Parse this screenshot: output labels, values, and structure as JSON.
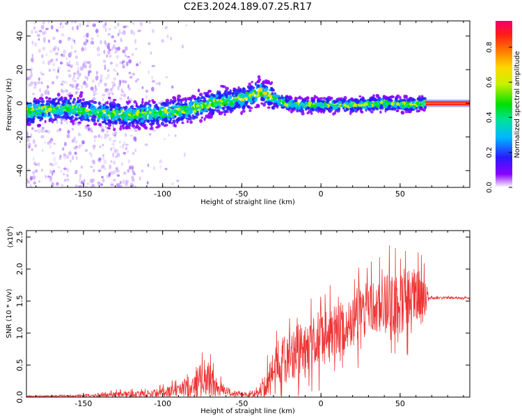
{
  "figure_title": "C2E3.2024.189.07.25.R17",
  "chart_data": [
    {
      "type": "heatmap",
      "title": "",
      "xlabel": "Height of straight line (km)",
      "ylabel": "Frequency (Hz)",
      "xlim": [
        -186,
        94
      ],
      "ylim": [
        -50,
        49
      ],
      "xticks": [
        -150,
        -100,
        -50,
        0,
        50
      ],
      "yticks": [
        -40,
        -20,
        0,
        20,
        40
      ],
      "colorbar": {
        "label": "Normalized spectral amplitude",
        "range": [
          0.0,
          0.95
        ],
        "ticks": [
          0.0,
          0.2,
          0.4,
          0.6,
          0.8
        ],
        "colormap": [
          "#8a00ff",
          "#2a1aff",
          "#00b8ff",
          "#00e0a0",
          "#00e000",
          "#c8f000",
          "#ffd800",
          "#ff7a00",
          "#ff1a1a",
          "#f0006a"
        ]
      },
      "ridge": {
        "x": [
          -186,
          -160,
          -140,
          -120,
          -100,
          -85,
          -70,
          -55,
          -45,
          -38,
          -30,
          -22,
          -15,
          0,
          20,
          40,
          55,
          65,
          94
        ],
        "y": [
          -5,
          -3,
          -6,
          -7,
          -6,
          -4,
          0,
          2,
          4,
          7,
          3,
          0,
          -1,
          -1,
          -1,
          0,
          -1,
          0,
          0
        ]
      },
      "high_amplitude_segment": {
        "x": [
          66,
          94
        ],
        "y": 0
      }
    },
    {
      "type": "line",
      "title": "",
      "xlabel": "Height of straight line (km)",
      "ylabel": "SNR (10 * v/v)",
      "y_multiplier": "(x10",
      "y_multiplier_exp": "4",
      "y_multiplier_close": ")",
      "xlim": [
        -186,
        94
      ],
      "ylim": [
        0.0,
        2.6
      ],
      "xticks": [
        -150,
        -100,
        -50,
        0,
        50
      ],
      "yticks": [
        0.0,
        0.5,
        1.0,
        1.5,
        2.0,
        2.5
      ],
      "series": [
        {
          "color": "#ee3333",
          "envelope": {
            "x": [
              -186,
              -150,
              -130,
              -110,
              -100,
              -90,
              -80,
              -75,
              -70,
              -62,
              -55,
              -45,
              -38,
              -32,
              -28,
              -20,
              -10,
              0,
              10,
              20,
              30,
              40,
              50,
              60,
              66,
              68,
              80,
              94
            ],
            "base": [
              0.01,
              0.02,
              0.04,
              0.05,
              0.08,
              0.12,
              0.2,
              0.3,
              0.25,
              0.12,
              0.05,
              0.04,
              0.08,
              0.3,
              0.5,
              0.65,
              0.8,
              0.9,
              1.05,
              1.2,
              1.35,
              1.45,
              1.5,
              1.55,
              1.5,
              1.55,
              1.55,
              1.55
            ],
            "amp": [
              0.01,
              0.02,
              0.05,
              0.06,
              0.08,
              0.12,
              0.25,
              0.5,
              0.3,
              0.12,
              0.05,
              0.04,
              0.1,
              0.35,
              0.45,
              0.5,
              0.5,
              0.5,
              0.5,
              0.5,
              0.5,
              0.55,
              0.65,
              0.6,
              0.5,
              0.02,
              0.02,
              0.02
            ]
          }
        }
      ]
    }
  ]
}
